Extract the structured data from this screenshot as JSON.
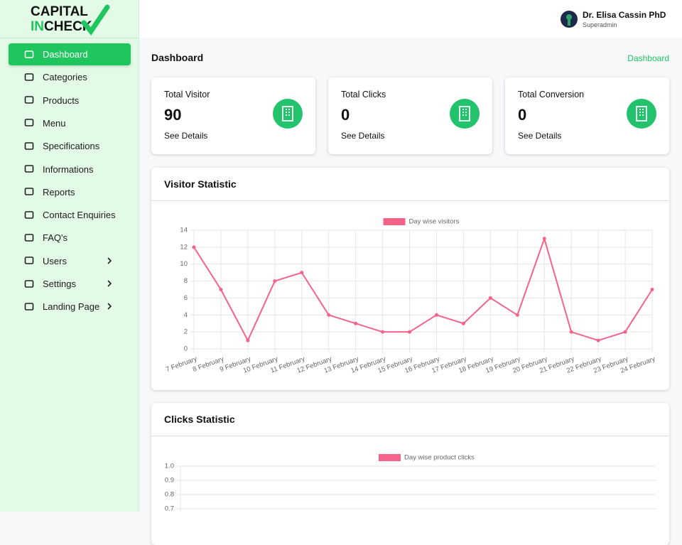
{
  "logo": {
    "top": "CAPITAL",
    "accent": "IN",
    "bottom": "CHECK"
  },
  "user": {
    "name": "Dr. Elisa Cassin PhD",
    "role": "Superadmin"
  },
  "sidebar": {
    "items": [
      {
        "label": "Dashboard",
        "active": true
      },
      {
        "label": "Categories"
      },
      {
        "label": "Products"
      },
      {
        "label": "Menu"
      },
      {
        "label": "Specifications"
      },
      {
        "label": "Informations"
      },
      {
        "label": "Reports"
      },
      {
        "label": "Contact Enquiries"
      },
      {
        "label": "FAQ's"
      },
      {
        "label": "Users",
        "submenu": true
      },
      {
        "label": "Settings",
        "submenu": true
      },
      {
        "label": "Landing Page",
        "submenu": true
      }
    ]
  },
  "page": {
    "title": "Dashboard",
    "breadcrumb": "Dashboard"
  },
  "cards": [
    {
      "label": "Total Visitor",
      "value": 90,
      "link": "See Details"
    },
    {
      "label": "Total Clicks",
      "value": 0,
      "link": "See Details"
    },
    {
      "label": "Total Conversion",
      "value": 0,
      "link": "See Details"
    }
  ],
  "panels": [
    {
      "title": "Visitor Statistic"
    },
    {
      "title": "Clicks Statistic"
    }
  ],
  "chart_data": [
    {
      "type": "line",
      "categories": [
        "7 February",
        "8 February",
        "9 February",
        "10 February",
        "11 February",
        "12 February",
        "13 February",
        "14 February",
        "15 February",
        "16 February",
        "17 February",
        "18 February",
        "19 February",
        "20 February",
        "21 February",
        "22 February",
        "23 February",
        "24 February"
      ],
      "series": [
        {
          "name": "Day wise visitors",
          "color": "#f5628a",
          "values": [
            12,
            7,
            1,
            8,
            9,
            4,
            3,
            2,
            2,
            4,
            3,
            6,
            4,
            13,
            2,
            1,
            2,
            7
          ]
        }
      ],
      "ylim": [
        0,
        14
      ],
      "yticks": [
        0,
        2,
        4,
        6,
        8,
        10,
        12,
        14
      ],
      "grid": true
    },
    {
      "type": "line",
      "series": [
        {
          "name": "Day wise product clicks",
          "color": "#f5628a"
        }
      ],
      "ylim": [
        0,
        1
      ],
      "yticks": [
        {
          "value": 1,
          "label": "1.0"
        },
        0.9,
        0.8,
        0.7
      ],
      "grid": true
    }
  ]
}
